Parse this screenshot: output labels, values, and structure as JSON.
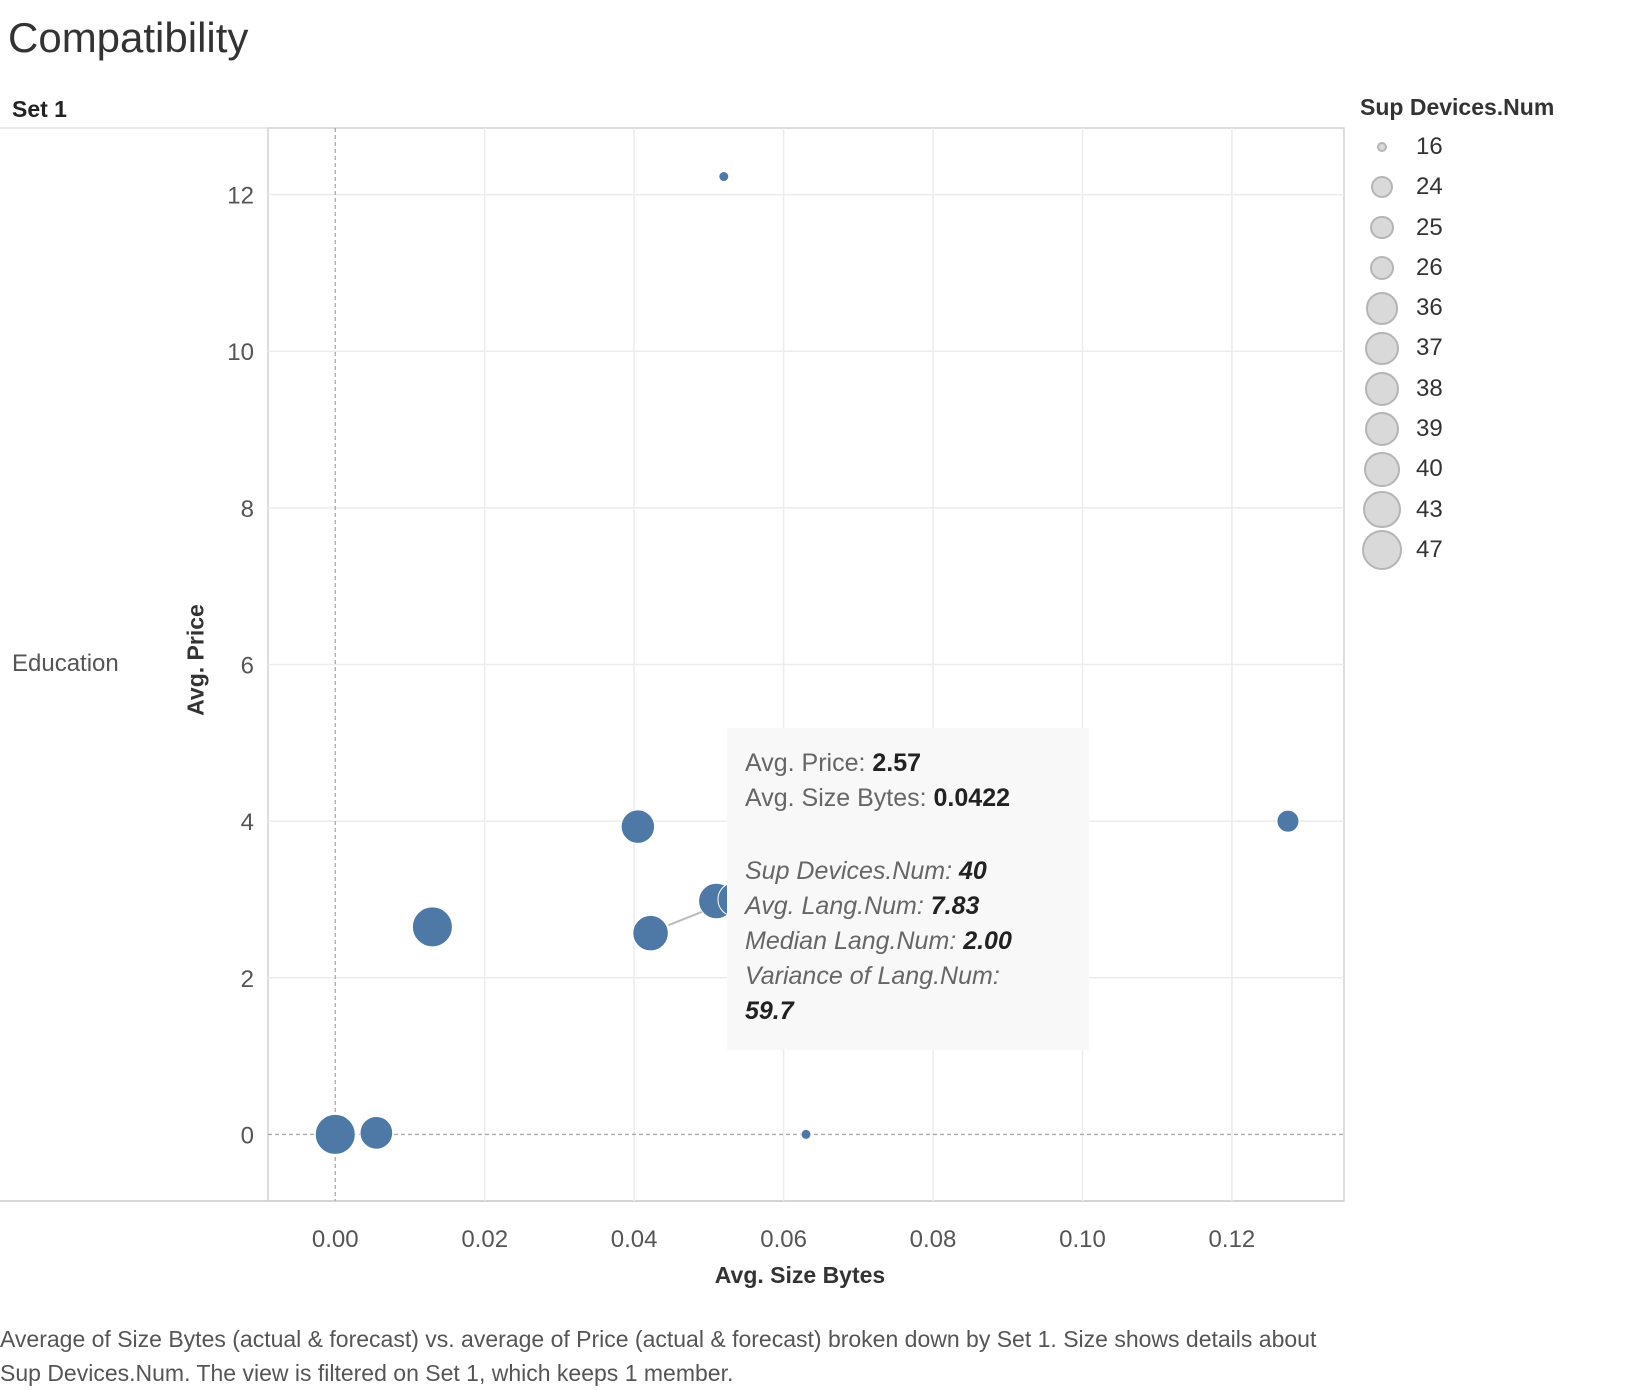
{
  "title": "Compatibility",
  "set_header": "Set 1",
  "row_label": "Education",
  "caption": "Average of Size Bytes (actual & forecast)  vs. average of Price (actual & forecast)  broken down by Set 1.  Size shows details about Sup Devices.Num. The view is filtered on Set 1, which keeps 1 member.",
  "colors": {
    "mark": "#4e79a7",
    "grid": "#ececec",
    "legend_fill": "#d9d9d9",
    "legend_stroke": "#b5b5b5",
    "tooltip_bg": "#f8f8f8"
  },
  "legend": {
    "title": "Sup Devices.Num",
    "items": [
      "16",
      "24",
      "25",
      "26",
      "36",
      "37",
      "38",
      "39",
      "40",
      "43",
      "47"
    ]
  },
  "tooltip": {
    "price_label": "Avg. Price:",
    "price_value": "2.57",
    "size_label": "Avg. Size Bytes:",
    "size_value": "0.0422",
    "devices_label": "Sup Devices.Num:",
    "devices_value": "40",
    "lang_label": "Avg. Lang.Num:",
    "lang_value": "7.83",
    "median_label": "Median Lang.Num:",
    "median_value": "2.00",
    "variance_label": "Variance of Lang.Num:",
    "variance_value": "59.7"
  },
  "chart_data": {
    "type": "scatter",
    "title": "Compatibility",
    "xlabel": "Avg. Size Bytes",
    "ylabel": "Avg. Price",
    "xlim": [
      -0.009,
      0.135
    ],
    "ylim": [
      -0.85,
      12.85
    ],
    "x_ticks": [
      "0.00",
      "0.02",
      "0.04",
      "0.06",
      "0.08",
      "0.10",
      "0.12"
    ],
    "y_ticks": [
      "0",
      "2",
      "4",
      "6",
      "8",
      "10",
      "12"
    ],
    "grid": true,
    "legend_placement": "right",
    "points": [
      {
        "x": 0.052,
        "y": 12.23,
        "size": 16
      },
      {
        "x": 0.1275,
        "y": 4.0,
        "size": 24
      },
      {
        "x": 0.0405,
        "y": 3.93,
        "size": 37
      },
      {
        "x": 0.0535,
        "y": 3.0,
        "size": 38
      },
      {
        "x": 0.051,
        "y": 2.98,
        "size": 40
      },
      {
        "x": 0.013,
        "y": 2.65,
        "size": 47
      },
      {
        "x": 0.0422,
        "y": 2.57,
        "size": 40
      },
      {
        "x": 0.0,
        "y": 0.0,
        "size": 47
      },
      {
        "x": 0.0055,
        "y": 0.02,
        "size": 36
      },
      {
        "x": 0.063,
        "y": 0.0,
        "size": 16
      }
    ]
  }
}
